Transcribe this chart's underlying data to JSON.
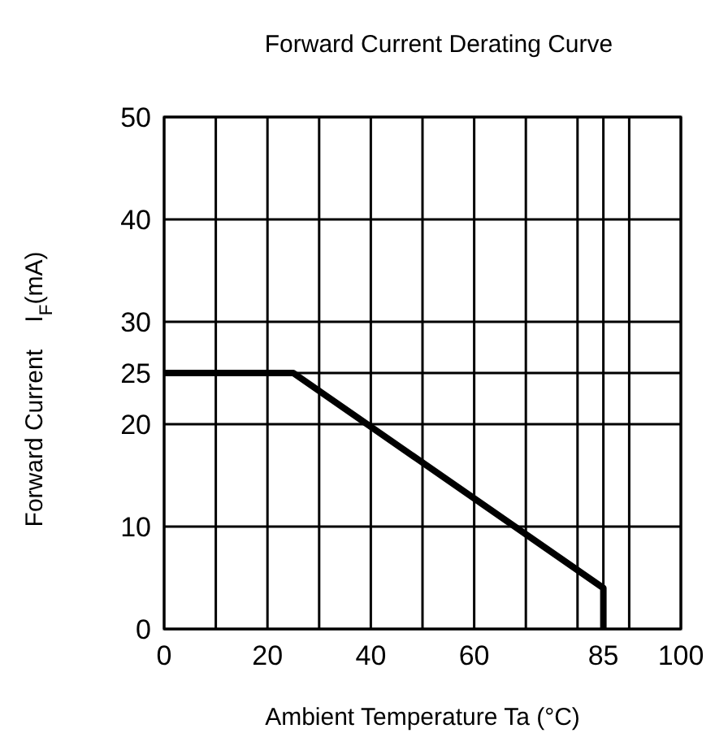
{
  "chart_data": {
    "type": "line",
    "title": "Forward Current Derating Curve",
    "xlabel": "Ambient Temperature Ta (°C)",
    "ylabel": "Forward Current    I$_{F}$(mA)",
    "x": [
      0,
      25,
      85,
      85
    ],
    "series": [
      {
        "color": "#000000",
        "values": [
          25,
          25,
          4,
          0
        ]
      }
    ],
    "xlim": [
      0,
      100
    ],
    "ylim": [
      0,
      50
    ],
    "xticks": [
      0,
      {
        "value": 10,
        "label": null
      },
      20,
      {
        "value": 30,
        "label": null
      },
      40,
      {
        "value": 50,
        "label": null
      },
      60,
      {
        "value": 70,
        "label": null
      },
      {
        "value": 80,
        "label": null
      },
      85,
      {
        "value": 90,
        "label": null
      },
      100
    ],
    "yticks": [
      0,
      10,
      20,
      25,
      30,
      40,
      50
    ],
    "grid": true,
    "marker": "none",
    "line_style": "solid"
  }
}
